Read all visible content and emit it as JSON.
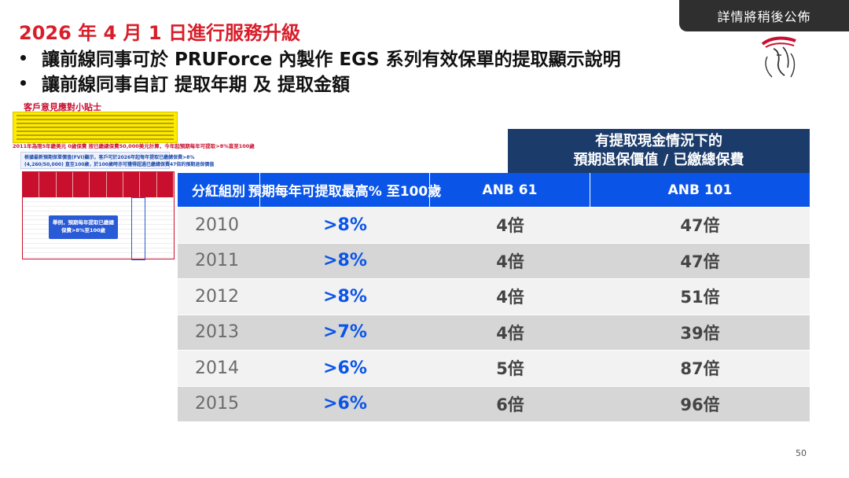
{
  "badge": "詳情將稍後公佈",
  "title": "2026 年 4 月 1 日進行服務升級",
  "bullets": [
    "讓前線同事可於 PRUForce 內製作 EGS 系列有效保單的提取顯示說明",
    "讓前線同事自訂 提取年期 及 提取金額"
  ],
  "thumbnail": {
    "tips_title": "客戶意見應對小貼士",
    "example_line": "2011年為限5年繳美元 0歲保費 按已繳總保費50,000美元計算，今年起預期每年可提取>8%直至100歲",
    "fvi_line1": "根據最新預期保單價值(FVI)顯示，客戶可於2026年起每年提取已繳總保費>8%",
    "fvi_line2": "(4,260/50,000) 直至100歲，於100歲時亦可獲得超過已繳總保費47倍的預期退保價值",
    "callout": "舉例，預期每年提取已繳總保費>8%至100歲"
  },
  "table": {
    "header_top_line1": "有提取現金情況下的",
    "header_top_line2": "預期退保價值 / 已繳總保費",
    "columns": [
      "分紅組別",
      "預期每年可提取最高% 至100歲",
      "ANB 61",
      "ANB 101"
    ],
    "rows": [
      {
        "year": "2010",
        "pct": ">8%",
        "anb61": "4倍",
        "anb101": "47倍"
      },
      {
        "year": "2011",
        "pct": ">8%",
        "anb61": "4倍",
        "anb101": "47倍"
      },
      {
        "year": "2012",
        "pct": ">8%",
        "anb61": "4倍",
        "anb101": "51倍"
      },
      {
        "year": "2013",
        "pct": ">7%",
        "anb61": "4倍",
        "anb101": "39倍"
      },
      {
        "year": "2014",
        "pct": ">6%",
        "anb61": "5倍",
        "anb101": "87倍"
      },
      {
        "year": "2015",
        "pct": ">6%",
        "anb61": "6倍",
        "anb101": "96倍"
      }
    ]
  },
  "page_number": "50",
  "colors": {
    "title_red": "#d81e2a",
    "header_navy": "#1b3b6b",
    "header_blue": "#0a55e8"
  },
  "icons": {
    "logo": "prudential-lady-logo-icon"
  }
}
